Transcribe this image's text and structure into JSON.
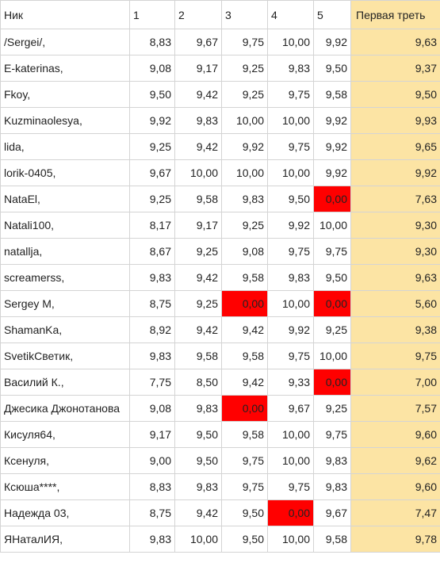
{
  "colors": {
    "total_bg": "#fce4a4",
    "zero_bg": "#ff0000",
    "grid": "#d4d4d4"
  },
  "header": {
    "nick": "Ник",
    "c1": "1",
    "c2": "2",
    "c3": "3",
    "c4": "4",
    "c5": "5",
    "total": "Первая треть"
  },
  "rows": [
    {
      "nick": "/Sergei/,",
      "c1": "8,83",
      "c2": "9,67",
      "c3": "9,75",
      "c4": "10,00",
      "c5": "9,92",
      "total": "9,63"
    },
    {
      "nick": "E-katerinas,",
      "c1": "9,08",
      "c2": "9,17",
      "c3": "9,25",
      "c4": "9,83",
      "c5": "9,50",
      "total": "9,37"
    },
    {
      "nick": "Fkoy,",
      "c1": "9,50",
      "c2": "9,42",
      "c3": "9,25",
      "c4": "9,75",
      "c5": "9,58",
      "total": "9,50"
    },
    {
      "nick": "Kuzminaolesya,",
      "c1": "9,92",
      "c2": "9,83",
      "c3": "10,00",
      "c4": "10,00",
      "c5": "9,92",
      "total": "9,93"
    },
    {
      "nick": "lida,",
      "c1": "9,25",
      "c2": "9,42",
      "c3": "9,92",
      "c4": "9,75",
      "c5": "9,92",
      "total": "9,65"
    },
    {
      "nick": "lorik-0405,",
      "c1": "9,67",
      "c2": "10,00",
      "c3": "10,00",
      "c4": "10,00",
      "c5": "9,92",
      "total": "9,92"
    },
    {
      "nick": "NataEl,",
      "c1": "9,25",
      "c2": "9,58",
      "c3": "9,83",
      "c4": "9,50",
      "c5": "0,00",
      "total": "7,63"
    },
    {
      "nick": "Natali100,",
      "c1": "8,17",
      "c2": "9,17",
      "c3": "9,25",
      "c4": "9,92",
      "c5": "10,00",
      "total": "9,30"
    },
    {
      "nick": "natallja,",
      "c1": "8,67",
      "c2": "9,25",
      "c3": "9,08",
      "c4": "9,75",
      "c5": "9,75",
      "total": "9,30"
    },
    {
      "nick": "screamerss,",
      "c1": "9,83",
      "c2": "9,42",
      "c3": "9,58",
      "c4": "9,83",
      "c5": "9,50",
      "total": "9,63"
    },
    {
      "nick": "Sergey M,",
      "c1": "8,75",
      "c2": "9,25",
      "c3": "0,00",
      "c4": "10,00",
      "c5": "0,00",
      "total": "5,60"
    },
    {
      "nick": "ShamanKa,",
      "c1": "8,92",
      "c2": "9,42",
      "c3": "9,42",
      "c4": "9,92",
      "c5": "9,25",
      "total": "9,38"
    },
    {
      "nick": "SvetikСветик,",
      "c1": "9,83",
      "c2": "9,58",
      "c3": "9,58",
      "c4": "9,75",
      "c5": "10,00",
      "total": "9,75"
    },
    {
      "nick": "Василий К.,",
      "c1": "7,75",
      "c2": "8,50",
      "c3": "9,42",
      "c4": "9,33",
      "c5": "0,00",
      "total": "7,00"
    },
    {
      "nick": "Джесика Джонотанова",
      "c1": "9,08",
      "c2": "9,83",
      "c3": "0,00",
      "c4": "9,67",
      "c5": "9,25",
      "total": "7,57"
    },
    {
      "nick": "Кисуля64,",
      "c1": "9,17",
      "c2": "9,50",
      "c3": "9,58",
      "c4": "10,00",
      "c5": "9,75",
      "total": "9,60"
    },
    {
      "nick": "Ксенуля,",
      "c1": "9,00",
      "c2": "9,50",
      "c3": "9,75",
      "c4": "10,00",
      "c5": "9,83",
      "total": "9,62"
    },
    {
      "nick": "Ксюша****,",
      "c1": "8,83",
      "c2": "9,83",
      "c3": "9,75",
      "c4": "9,75",
      "c5": "9,83",
      "total": "9,60"
    },
    {
      "nick": "Надежда 03,",
      "c1": "8,75",
      "c2": "9,42",
      "c3": "9,50",
      "c4": "0,00",
      "c5": "9,67",
      "total": "7,47"
    },
    {
      "nick": "ЯНаталИЯ,",
      "c1": "9,83",
      "c2": "10,00",
      "c3": "9,50",
      "c4": "10,00",
      "c5": "9,58",
      "total": "9,78"
    }
  ]
}
